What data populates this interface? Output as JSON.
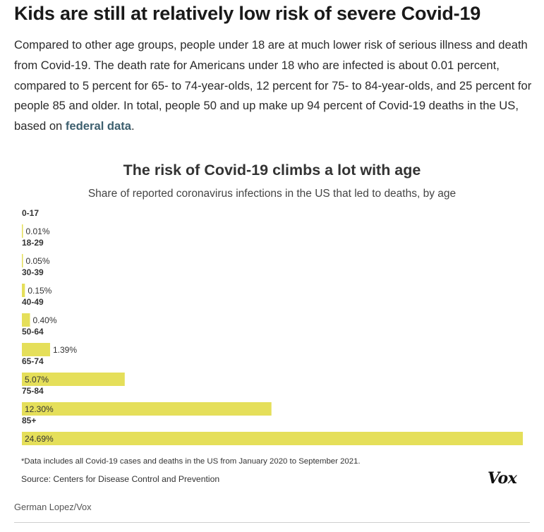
{
  "article": {
    "headline": "Kids are still at relatively low risk of severe Covid-19",
    "intro_text": "Compared to other age groups, people under 18 are at much lower risk of serious illness and death from Covid-19. The death rate for Americans under 18 who are infected is about 0.01 percent, compared to 5 percent for 65- to 74-year-olds, 12 percent for 75- to 84-year-olds, and 25 percent for people 85 and older. In total, people 50 and up make up 94 percent of Covid-19 deaths in the US, based on ",
    "intro_link": "federal data",
    "intro_end": ".",
    "link_color": "#3d5f6e",
    "credit": "German Lopez/Vox"
  },
  "chart_data": {
    "type": "bar",
    "orientation": "horizontal",
    "title": "The risk of Covid-19 climbs a lot with age",
    "subtitle": "Share of reported coronavirus infections in the US that led to deaths, by age",
    "categories": [
      "0-17",
      "18-29",
      "30-39",
      "40-49",
      "50-64",
      "65-74",
      "75-84",
      "85+"
    ],
    "values": [
      0.01,
      0.05,
      0.15,
      0.4,
      1.39,
      5.07,
      12.3,
      24.69
    ],
    "value_labels": [
      "0.01%",
      "0.05%",
      "0.15%",
      "0.40%",
      "1.39%",
      "5.07%",
      "12.30%",
      "24.69%"
    ],
    "unit": "%",
    "xlim": [
      0,
      24.69
    ],
    "bar_color": "#e5df5a",
    "grid": false,
    "legend": "none",
    "footnote": "*Data includes all Covid-19 cases and deaths in the US from January 2020 to September 2021.",
    "source": "Source: Centers for Disease Control and Prevention"
  },
  "branding": {
    "logo_text": "Vox"
  }
}
